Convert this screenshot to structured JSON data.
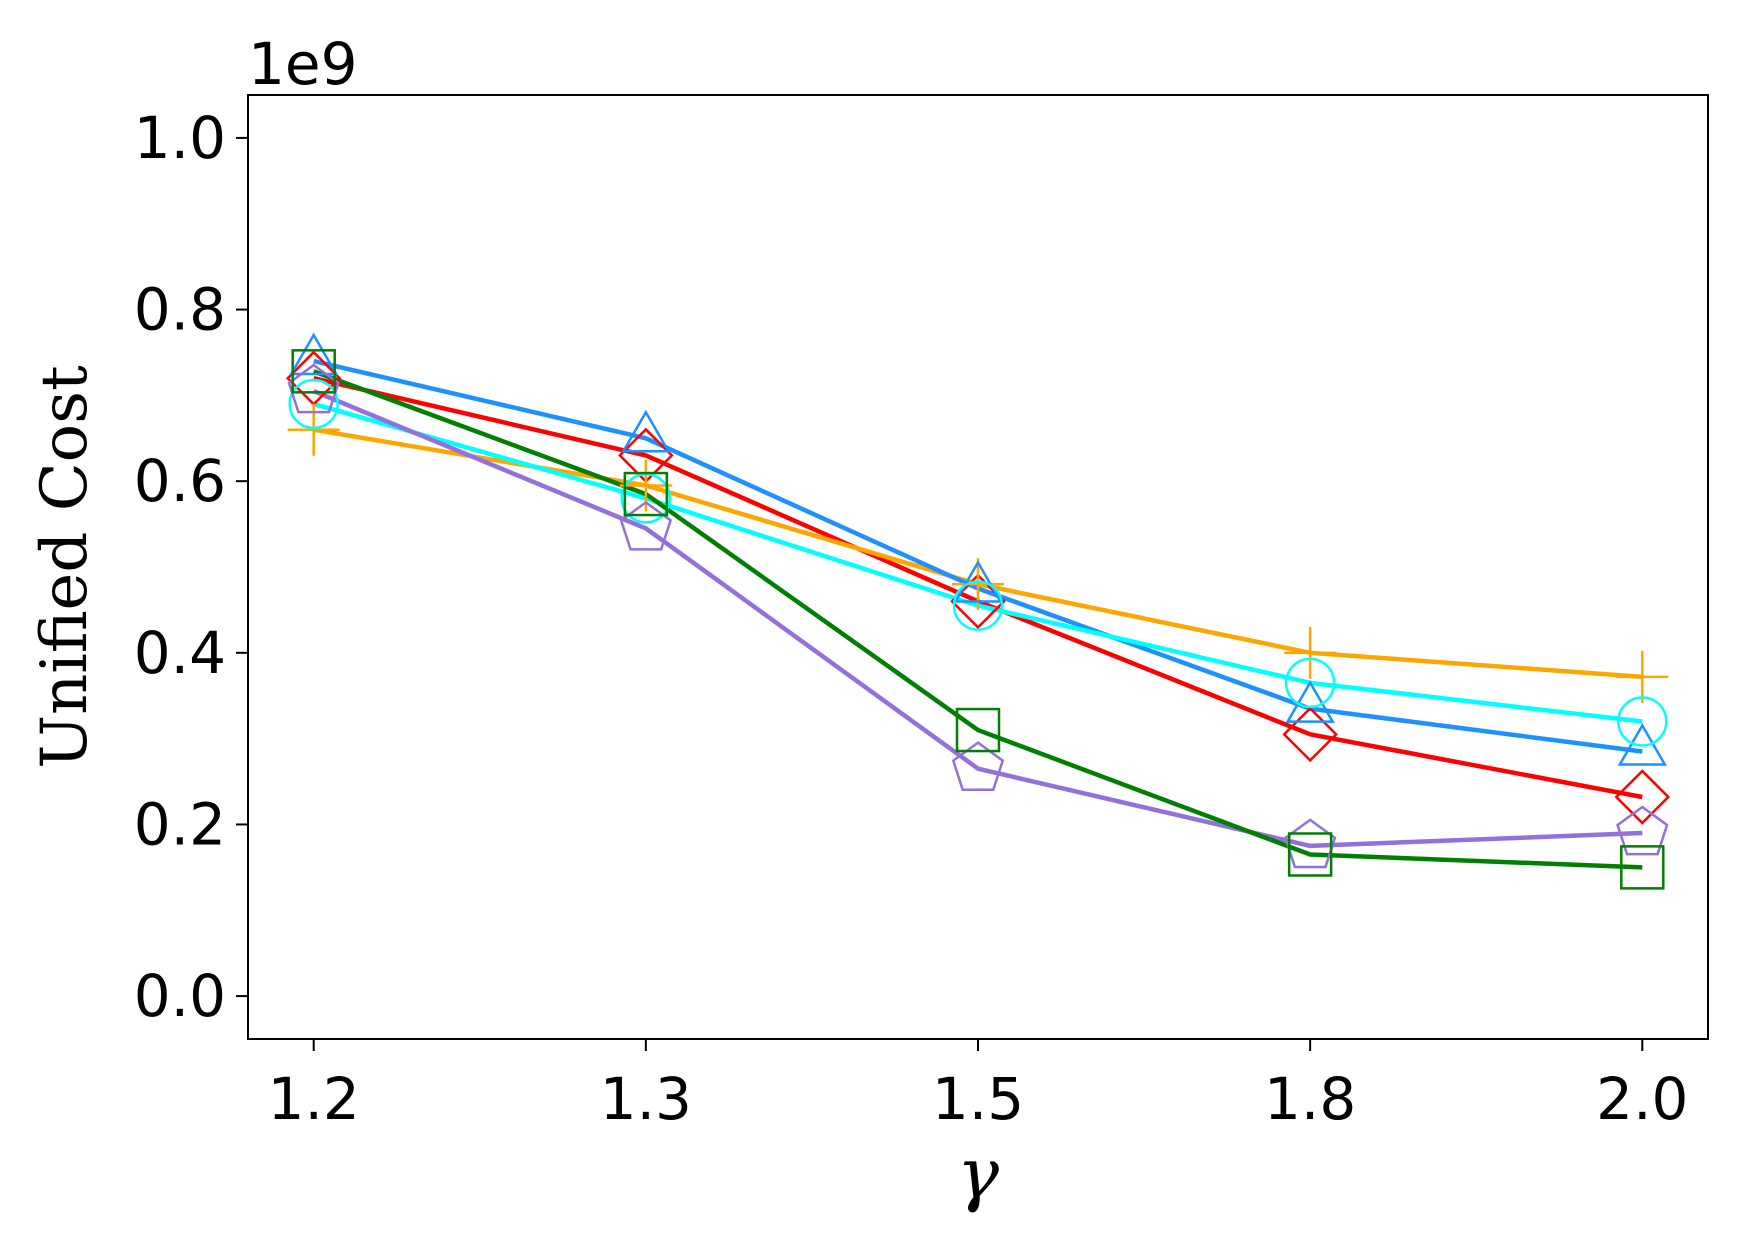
{
  "chart_data": {
    "type": "line",
    "x": [
      "1.2",
      "1.3",
      "1.5",
      "1.8",
      "2.0"
    ],
    "xlabel": "γ",
    "ylabel": "Unified Cost",
    "y_offset_label": "1e9",
    "ylim": [
      -0.05,
      1.05
    ],
    "yticks": [
      "0.0",
      "0.2",
      "0.4",
      "0.6",
      "0.8",
      "1.0"
    ],
    "series": [
      {
        "color": "#ff0000",
        "marker": "diamond",
        "values": [
          0.72,
          0.63,
          0.46,
          0.305,
          0.232
        ]
      },
      {
        "color": "#ffa500",
        "marker": "plus",
        "values": [
          0.66,
          0.595,
          0.48,
          0.4,
          0.372
        ]
      },
      {
        "color": "#1e90ff",
        "marker": "triangle",
        "values": [
          0.74,
          0.65,
          0.475,
          0.335,
          0.285
        ]
      },
      {
        "color": "#00ffff",
        "marker": "circle",
        "values": [
          0.69,
          0.58,
          0.455,
          0.365,
          0.32
        ]
      },
      {
        "color": "#9370db",
        "marker": "pentagon",
        "values": [
          0.705,
          0.545,
          0.265,
          0.175,
          0.19
        ]
      },
      {
        "color": "#008000",
        "marker": "square",
        "values": [
          0.728,
          0.585,
          0.31,
          0.165,
          0.15
        ]
      }
    ]
  }
}
